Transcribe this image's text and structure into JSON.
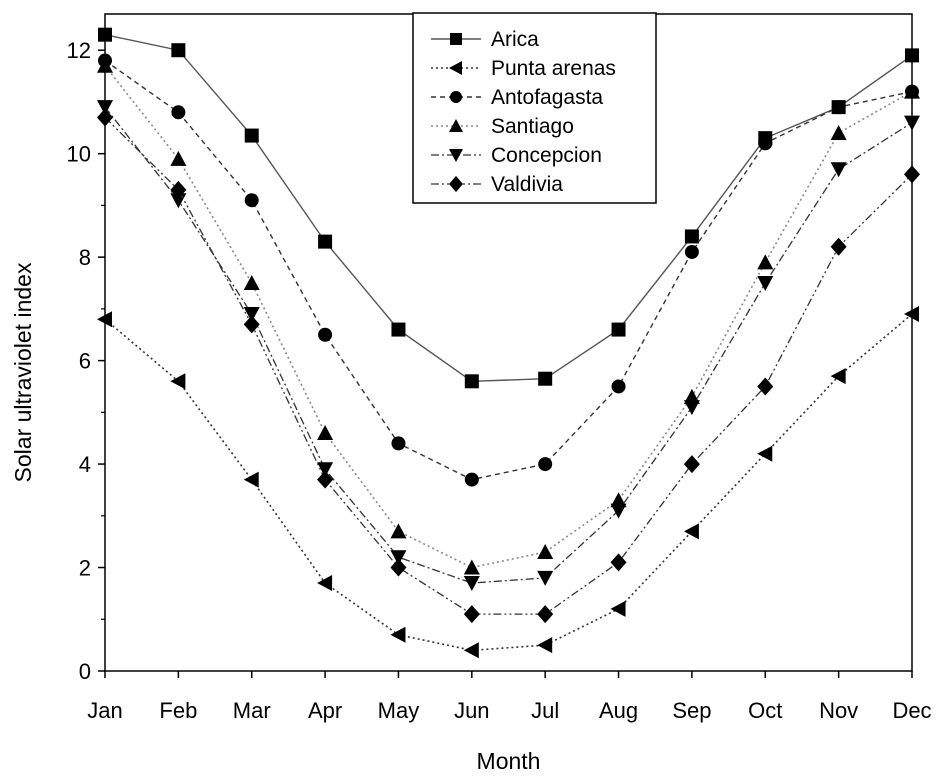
{
  "chart_data": {
    "type": "line",
    "title": "",
    "xlabel": "Month",
    "ylabel": "Solar ultraviolet index",
    "categories": [
      "Jan",
      "Feb",
      "Mar",
      "Apr",
      "May",
      "Jun",
      "Jul",
      "Aug",
      "Sep",
      "Oct",
      "Nov",
      "Dec"
    ],
    "yticks": [
      "0",
      "2",
      "4",
      "6",
      "8",
      "10",
      "12"
    ],
    "ylim": [
      0,
      12.7
    ],
    "grid": false,
    "legend_position": "top-center",
    "series": [
      {
        "name": "Arica",
        "marker": "square",
        "dash": "solid",
        "values": [
          12.3,
          12.0,
          10.35,
          8.3,
          6.6,
          5.6,
          5.65,
          6.6,
          8.4,
          10.3,
          10.9,
          11.9
        ]
      },
      {
        "name": "Punta arenas",
        "marker": "triangle-left",
        "dash": "dotted",
        "values": [
          6.8,
          5.6,
          3.7,
          1.7,
          0.7,
          0.4,
          0.5,
          1.2,
          2.7,
          4.2,
          5.7,
          6.9
        ]
      },
      {
        "name": "Antofagasta",
        "marker": "circle",
        "dash": "dashed",
        "values": [
          11.8,
          10.8,
          9.1,
          6.5,
          4.4,
          3.7,
          4.0,
          5.5,
          8.1,
          10.2,
          10.9,
          11.2
        ]
      },
      {
        "name": "Santiago",
        "marker": "triangle-up",
        "dash": "dotted-light",
        "values": [
          11.7,
          9.9,
          7.5,
          4.6,
          2.7,
          2.0,
          2.3,
          3.3,
          5.3,
          7.9,
          10.4,
          11.2
        ]
      },
      {
        "name": "Concepcion",
        "marker": "triangle-down",
        "dash": "dashdot",
        "values": [
          10.9,
          9.1,
          6.9,
          3.9,
          2.2,
          1.7,
          1.8,
          3.1,
          5.1,
          7.5,
          9.7,
          10.6
        ]
      },
      {
        "name": "Valdivia",
        "marker": "diamond",
        "dash": "dashdotdot",
        "values": [
          10.7,
          9.3,
          6.7,
          3.7,
          2.0,
          1.1,
          1.1,
          2.1,
          4.0,
          5.5,
          8.2,
          9.6
        ]
      }
    ]
  }
}
